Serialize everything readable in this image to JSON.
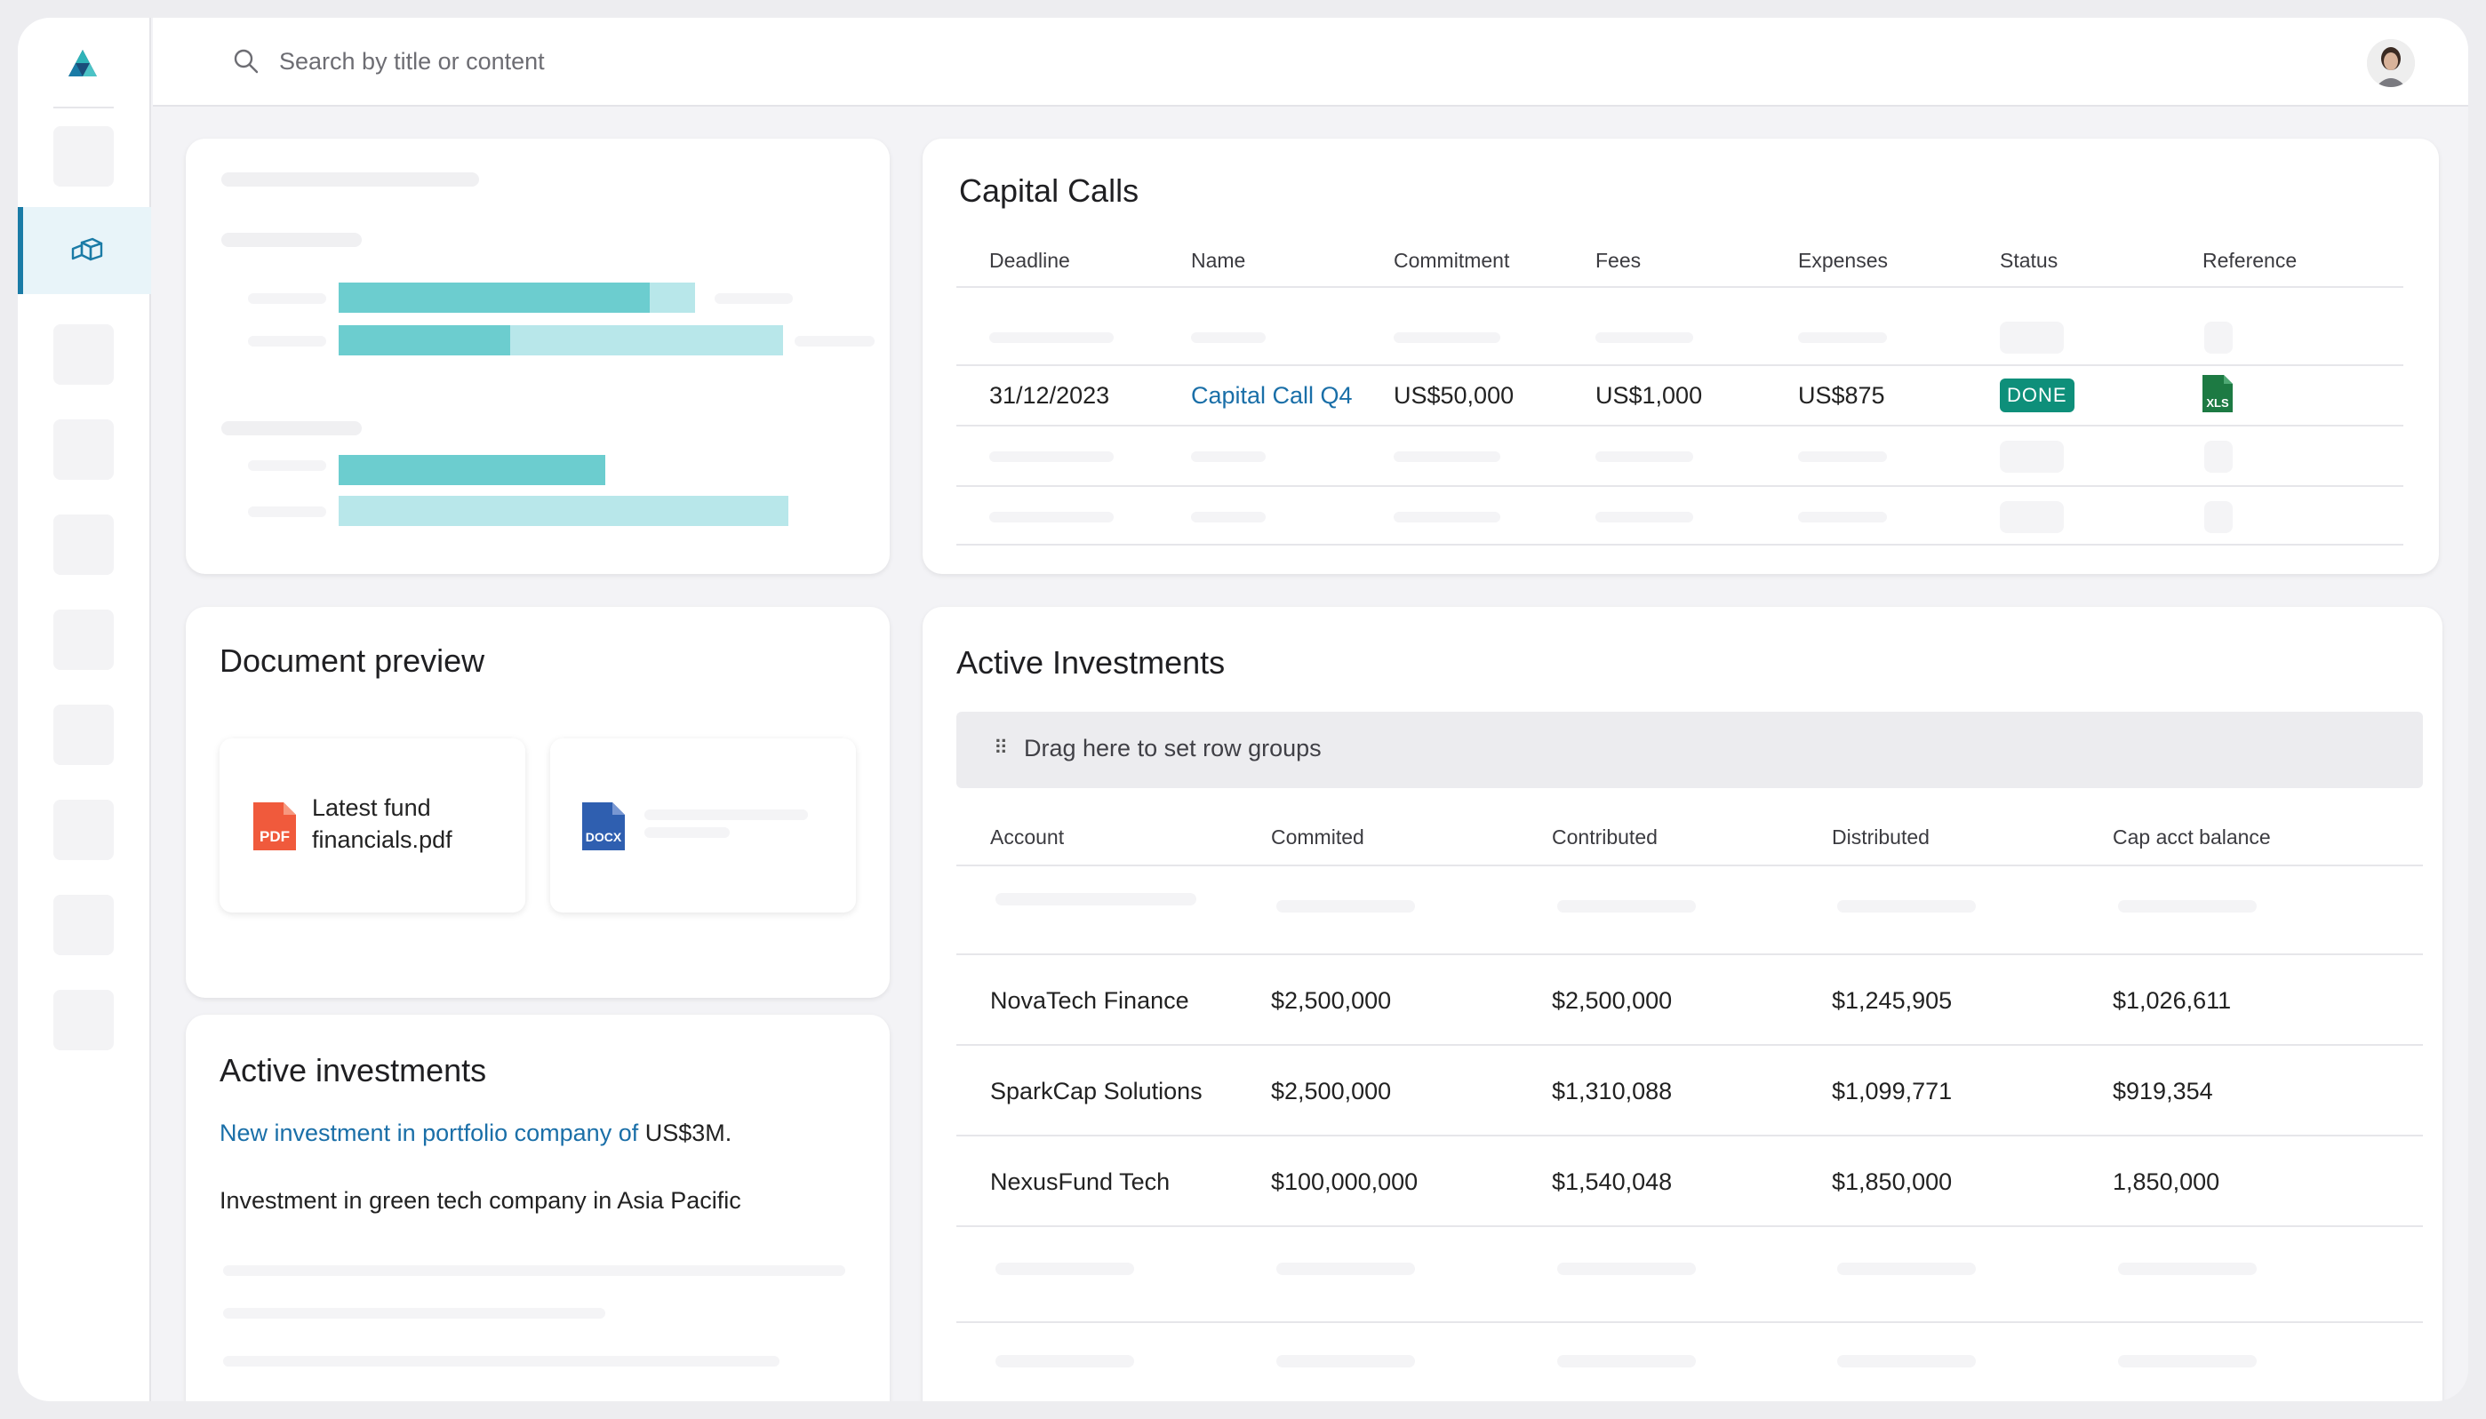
{
  "search": {
    "placeholder": "Search by title or content"
  },
  "capital_calls": {
    "title": "Capital Calls",
    "columns": [
      "Deadline",
      "Name",
      "Commitment",
      "Fees",
      "Expenses",
      "Status",
      "Reference"
    ],
    "row": {
      "deadline": "31/12/2023",
      "name": "Capital Call Q4",
      "commitment": "US$50,000",
      "fees": "US$1,000",
      "expenses": "US$875",
      "status": "DONE",
      "reference_icon": "xls-file-icon",
      "reference_label": "XLS"
    }
  },
  "document_preview": {
    "title": "Document preview",
    "files": [
      {
        "icon": "pdf-file-icon",
        "icon_label": "PDF",
        "name": "Latest fund financials.pdf"
      },
      {
        "icon": "docx-file-icon",
        "icon_label": "DOCX",
        "name": ""
      }
    ]
  },
  "active_investments_note": {
    "title": "Active investments",
    "link_text": "New investment in portfolio company of",
    "amount": "US$3M",
    "description": "Investment in green tech company in Asia Pacific"
  },
  "active_investments": {
    "title": "Active Investments",
    "group_hint": "Drag here to set row groups",
    "columns": [
      "Account",
      "Commited",
      "Contributed",
      "Distributed",
      "Cap acct balance"
    ],
    "rows": [
      {
        "account": "NovaTech Finance",
        "commited": "$2,500,000",
        "contributed": "$2,500,000",
        "distributed": "$1,245,905",
        "balance": "$1,026,611"
      },
      {
        "account": "SparkCap Solutions",
        "commited": "$2,500,000",
        "contributed": "$1,310,088",
        "distributed": "$1,099,771",
        "balance": "$919,354"
      },
      {
        "account": "NexusFund Tech",
        "commited": "$100,000,000",
        "contributed": "$1,540,048",
        "distributed": "$1,850,000",
        "balance": "1,850,000"
      }
    ]
  },
  "colors": {
    "accent": "#1a7ba6",
    "bar_dark": "#6ccdcf",
    "bar_light": "#b8e7ea",
    "done_badge": "#0e8f7a",
    "link": "#1a6fa8"
  }
}
